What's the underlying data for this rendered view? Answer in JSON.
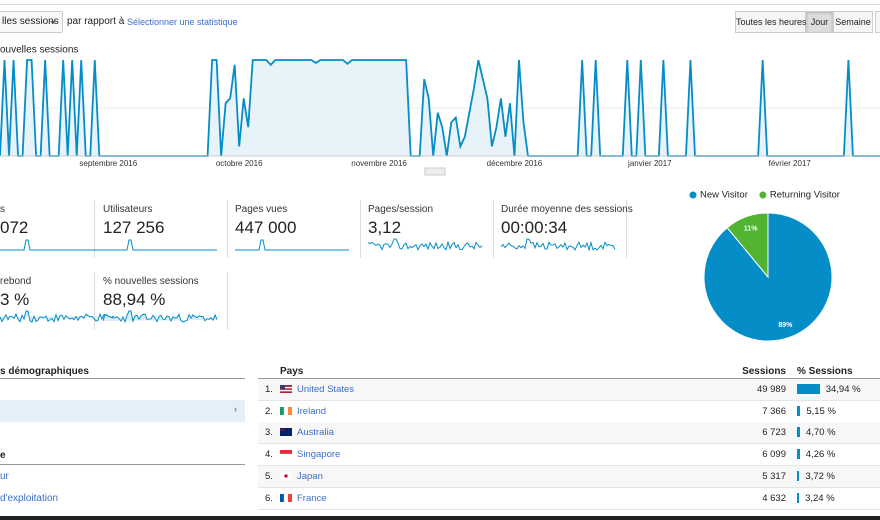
{
  "toolbar": {
    "metric": "lles sessions",
    "compare": "par rapport à",
    "select_stat": "Sélectionner une statistique",
    "ranges": [
      "Toutes les heures",
      "Jour",
      "Semaine",
      "M"
    ]
  },
  "chart_data": [
    {
      "type": "line",
      "title": "ouvelles sessions",
      "categories": [
        null,
        null,
        null,
        null,
        null,
        null,
        null,
        null,
        null,
        null,
        null,
        null,
        null,
        null,
        null,
        null,
        null,
        null,
        null,
        null,
        null,
        null,
        null,
        null,
        "septembre 2016",
        null,
        null,
        null,
        null,
        null,
        null,
        null,
        null,
        null,
        null,
        null,
        null,
        null,
        null,
        null,
        null,
        null,
        null,
        null,
        null,
        null,
        null,
        null,
        null,
        null,
        null,
        null,
        null,
        "octobre 2016",
        null,
        null,
        null,
        null,
        null,
        null,
        null,
        null,
        null,
        null,
        null,
        null,
        null,
        null,
        null,
        null,
        null,
        null,
        null,
        null,
        null,
        null,
        null,
        null,
        null,
        null,
        null,
        null,
        null,
        null,
        "novembre 2016",
        null,
        null,
        null,
        null,
        null,
        null,
        null,
        null,
        null,
        null,
        null,
        null,
        null,
        null,
        null,
        null,
        null,
        null,
        null,
        null,
        null,
        null,
        null,
        null,
        null,
        null,
        null,
        null,
        null,
        "décembre 2016",
        null,
        null,
        null,
        null,
        null,
        null,
        null,
        null,
        null,
        null,
        null,
        null,
        null,
        null,
        null,
        null,
        null,
        null,
        null,
        null,
        null,
        null,
        null,
        null,
        null,
        null,
        null,
        null,
        null,
        "janvier 2017",
        null,
        null,
        null,
        null,
        null,
        null,
        null,
        null,
        null,
        null,
        null,
        null,
        null,
        null,
        null,
        null,
        null,
        null,
        null,
        null,
        null,
        null,
        null,
        null,
        null,
        null,
        null,
        null,
        null,
        null,
        "février 2017",
        null,
        null,
        null,
        null,
        null,
        null,
        null,
        null,
        null,
        null,
        null,
        null,
        null,
        null,
        null,
        null,
        null,
        null,
        null,
        null
      ],
      "values": [
        0,
        100,
        0,
        100,
        0,
        0,
        100,
        100,
        0,
        0,
        100,
        0,
        0,
        0,
        100,
        0,
        100,
        0,
        100,
        0,
        0,
        100,
        0,
        0,
        0,
        0,
        0,
        0,
        0,
        0,
        0,
        0,
        0,
        0,
        0,
        0,
        0,
        0,
        0,
        0,
        0,
        0,
        0,
        0,
        0,
        0,
        0,
        100,
        100,
        0,
        55,
        60,
        95,
        10,
        60,
        30,
        100,
        100,
        100,
        100,
        95,
        100,
        100,
        100,
        100,
        100,
        100,
        100,
        100,
        100,
        97,
        100,
        100,
        100,
        100,
        100,
        100,
        96,
        100,
        100,
        100,
        100,
        100,
        100,
        100,
        100,
        100,
        100,
        100,
        100,
        100,
        0,
        0,
        0,
        80,
        60,
        0,
        45,
        30,
        0,
        35,
        40,
        10,
        20,
        45,
        70,
        100,
        80,
        60,
        10,
        30,
        60,
        20,
        55,
        0,
        100,
        35,
        0,
        0,
        0,
        0,
        0,
        0,
        0,
        0,
        0,
        0,
        0,
        0,
        100,
        0,
        0,
        100,
        0,
        0,
        0,
        0,
        0,
        0,
        100,
        0,
        0,
        100,
        0,
        0,
        0,
        0,
        100,
        0,
        0,
        0,
        0,
        0,
        100,
        0,
        0,
        0,
        0,
        0,
        0,
        0,
        0,
        0,
        0,
        0,
        0,
        0,
        0,
        0,
        100,
        0,
        0,
        0,
        0,
        0,
        0,
        0,
        0,
        0,
        0,
        0,
        0,
        0,
        0,
        0,
        0,
        0,
        0,
        100,
        0,
        0,
        0,
        0,
        0,
        0,
        0
      ],
      "color": "#058dc7",
      "ylim": [
        0,
        100
      ]
    },
    {
      "type": "pie",
      "categories": [
        "New Visitor",
        "Returning Visitor"
      ],
      "values": [
        89,
        11
      ],
      "value_labels": [
        "89%",
        "11%"
      ],
      "colors": [
        "#058dc7",
        "#50b432"
      ],
      "legend": "top"
    }
  ],
  "scorecards": [
    [
      {
        "label": "s",
        "value": "072"
      },
      {
        "label": "Utilisateurs",
        "value": "127 256"
      },
      {
        "label": "Pages vues",
        "value": "447 000"
      },
      {
        "label": "Pages/session",
        "value": "3,12"
      },
      {
        "label": "Durée moyenne des sessions",
        "value": "00:00:34"
      }
    ],
    [
      {
        "label": "rebond",
        "value": "3 %"
      },
      {
        "label": "% nouvelles sessions",
        "value": "88,94 %"
      }
    ]
  ],
  "left_panel": {
    "title": "s démographiques",
    "section": "e",
    "links": [
      "ur",
      "d'exploitation"
    ]
  },
  "table": {
    "headers": [
      "Pays",
      "Sessions",
      "% Sessions"
    ],
    "rows": [
      {
        "rank": "1.",
        "country": "United States",
        "sessions": "49 989",
        "pct": {
          "value": 34.94,
          "label": "34,94 %"
        }
      },
      {
        "rank": "2.",
        "country": "Ireland",
        "sessions": "7 366",
        "pct": {
          "value": 5.15,
          "label": "5,15 %"
        }
      },
      {
        "rank": "3.",
        "country": "Australia",
        "sessions": "6 723",
        "pct": {
          "value": 4.7,
          "label": "4,70 %"
        }
      },
      {
        "rank": "4.",
        "country": "Singapore",
        "sessions": "6 099",
        "pct": {
          "value": 4.26,
          "label": "4,26 %"
        }
      },
      {
        "rank": "5.",
        "country": "Japan",
        "sessions": "5 317",
        "pct": {
          "value": 3.72,
          "label": "3,72 %"
        }
      },
      {
        "rank": "6.",
        "country": "France",
        "sessions": "4 632",
        "pct": {
          "value": 3.24,
          "label": "3,24 %"
        }
      }
    ]
  }
}
